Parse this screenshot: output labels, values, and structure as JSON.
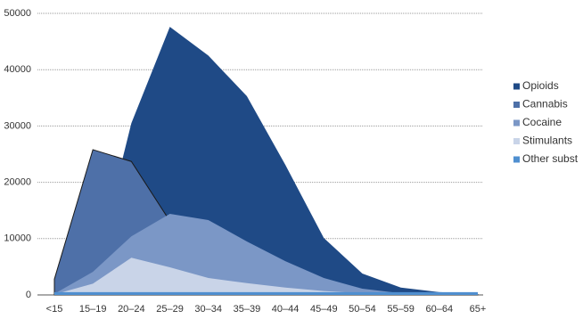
{
  "chart_data": {
    "type": "area",
    "categories": [
      "<15",
      "15–19",
      "20–24",
      "25–29",
      "30–34",
      "35–39",
      "40–44",
      "45–49",
      "50–54",
      "55–59",
      "60–64",
      "65+"
    ],
    "series": [
      {
        "name": "Opioids",
        "color": "#1f4a86",
        "values": [
          200,
          3000,
          30500,
          47600,
          42500,
          35300,
          23100,
          10100,
          3800,
          1300,
          500,
          300
        ]
      },
      {
        "name": "Cannabis",
        "color": "#4e70a8",
        "values": [
          2800,
          25800,
          23700,
          13100,
          7400,
          4600,
          2700,
          1400,
          600,
          200,
          100,
          50
        ]
      },
      {
        "name": "Cocaine",
        "color": "#7b97c6",
        "values": [
          200,
          4100,
          10400,
          14400,
          13300,
          9500,
          6000,
          3000,
          1100,
          300,
          100,
          50
        ]
      },
      {
        "name": "Stimulants",
        "color": "#c9d4e8",
        "values": [
          100,
          2000,
          6600,
          4900,
          3000,
          2100,
          1300,
          700,
          300,
          100,
          50,
          0
        ]
      },
      {
        "name": "Other subst",
        "color": "#4f8fd0",
        "values": [
          500,
          500,
          500,
          500,
          500,
          500,
          500,
          500,
          500,
          500,
          500,
          500
        ]
      }
    ],
    "ylim": [
      0,
      50000
    ],
    "yticks": [
      0,
      10000,
      20000,
      30000,
      40000,
      50000
    ],
    "grid": true,
    "legend": "right"
  }
}
